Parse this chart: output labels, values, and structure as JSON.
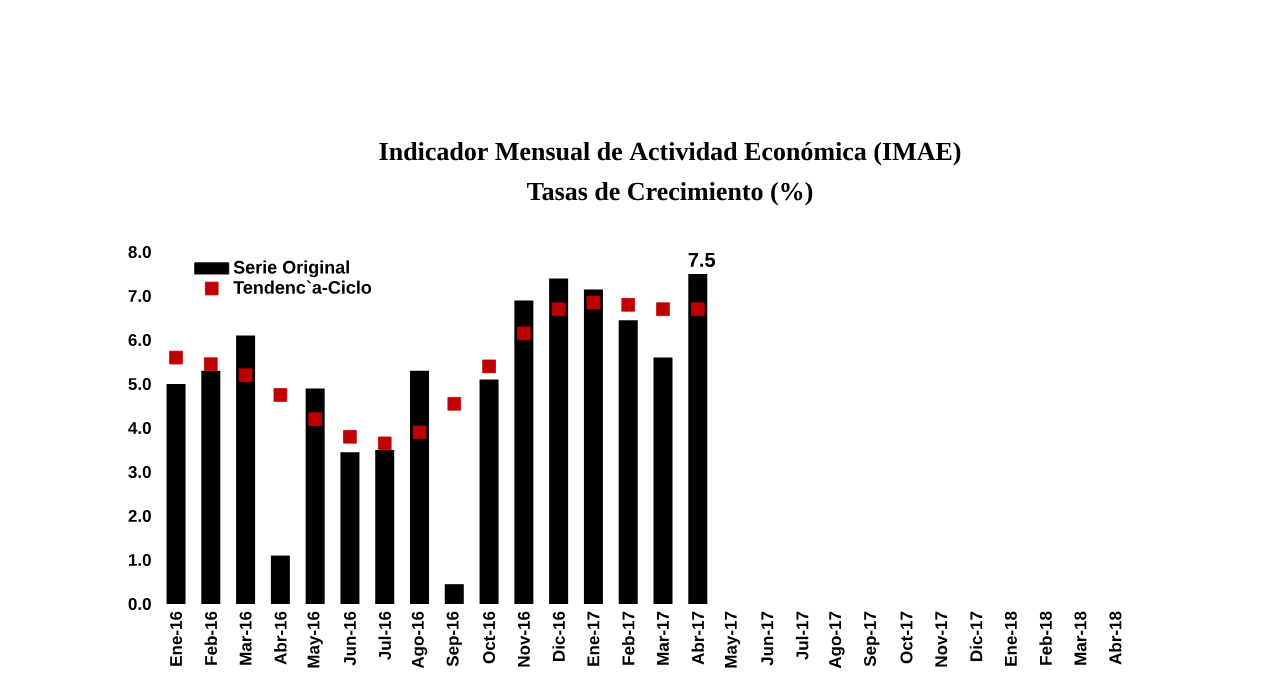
{
  "chart_data": {
    "type": "bar",
    "title": "Indicador Mensual de Actividad Económica (IMAE)",
    "subtitle": "Tasas de Crecimiento (%)",
    "categories": [
      "Ene-16",
      "Feb-16",
      "Mar-16",
      "Abr-16",
      "May-16",
      "Jun-16",
      "Jul-16",
      "Ago-16",
      "Sep-16",
      "Oct-16",
      "Nov-16",
      "Dic-16",
      "Ene-17",
      "Feb-17",
      "Mar-17",
      "Abr-17",
      "May-17",
      "Jun-17",
      "Jul-17",
      "Ago-17",
      "Sep-17",
      "Oct-17",
      "Nov-17",
      "Dic-17",
      "Ene-18",
      "Feb-18",
      "Mar-18",
      "Abr-18"
    ],
    "series": [
      {
        "name": "Serie Original",
        "color": "#000000",
        "values": [
          5.0,
          5.3,
          6.1,
          1.1,
          4.9,
          3.45,
          3.5,
          5.3,
          0.45,
          5.1,
          6.9,
          7.4,
          7.15,
          6.45,
          5.6,
          7.5,
          null,
          null,
          null,
          null,
          null,
          null,
          null,
          null,
          null,
          null,
          null,
          null
        ],
        "value_labels": [
          null,
          null,
          null,
          null,
          null,
          null,
          null,
          null,
          null,
          null,
          null,
          null,
          null,
          null,
          null,
          "7.5",
          null,
          null,
          null,
          null,
          null,
          null,
          null,
          null,
          null,
          null,
          null,
          null
        ]
      },
      {
        "name": "Tendenc`a-Ciclo",
        "type": "scatter",
        "marker": "square",
        "color": "#c00000",
        "values": [
          5.6,
          5.45,
          5.2,
          4.75,
          4.2,
          3.8,
          3.65,
          3.9,
          4.55,
          5.4,
          6.15,
          6.7,
          6.85,
          6.8,
          6.7,
          6.7,
          null,
          null,
          null,
          null,
          null,
          null,
          null,
          null,
          null,
          null,
          null,
          null
        ]
      }
    ],
    "ylim": [
      0,
      8
    ],
    "yticks": [
      {
        "value": 0,
        "label": "0.0"
      },
      {
        "value": 1,
        "label": "1.0"
      },
      {
        "value": 2,
        "label": "2.0"
      },
      {
        "value": 3,
        "label": "3.0"
      },
      {
        "value": 4,
        "label": "4.0"
      },
      {
        "value": 5,
        "label": "5.0"
      },
      {
        "value": 6,
        "label": "6.0"
      },
      {
        "value": 7,
        "label": "7.0"
      },
      {
        "value": 8,
        "label": "8.0"
      }
    ],
    "grid": false,
    "legend": "top left"
  }
}
